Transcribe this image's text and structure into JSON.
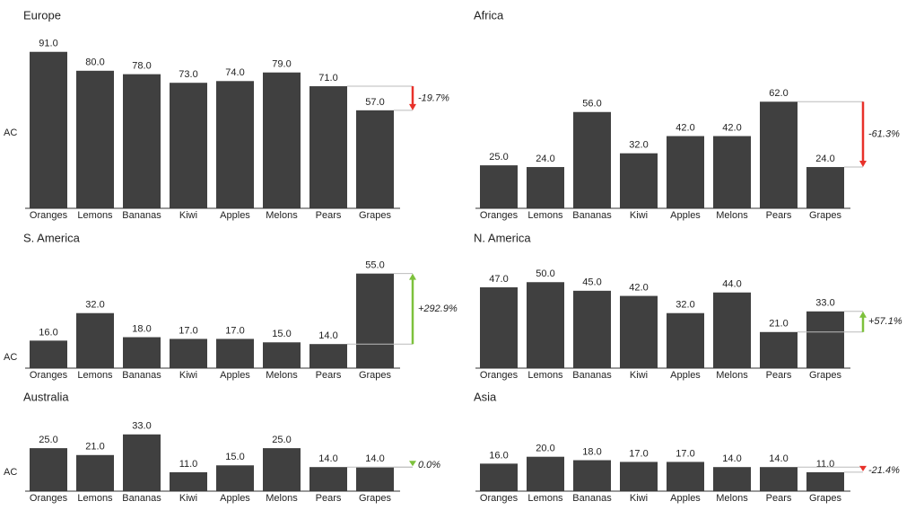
{
  "chart_data": [
    {
      "type": "bar",
      "title": "Europe",
      "axis_label": "AC",
      "categories": [
        "Oranges",
        "Lemons",
        "Bananas",
        "Kiwi",
        "Apples",
        "Melons",
        "Pears",
        "Grapes"
      ],
      "values": [
        91,
        80,
        78,
        73,
        74,
        79,
        71,
        57
      ],
      "value_labels": [
        "91.0",
        "80.0",
        "78.0",
        "73.0",
        "74.0",
        "79.0",
        "71.0",
        "57.0"
      ],
      "color": "#404040",
      "annotation": "-19.7%",
      "annotation_color": "#e8312a"
    },
    {
      "type": "bar",
      "title": "Africa",
      "categories": [
        "Oranges",
        "Lemons",
        "Bananas",
        "Kiwi",
        "Apples",
        "Melons",
        "Pears",
        "Grapes"
      ],
      "values": [
        25,
        24,
        56,
        32,
        42,
        42,
        62,
        24
      ],
      "value_labels": [
        "25.0",
        "24.0",
        "56.0",
        "32.0",
        "42.0",
        "42.0",
        "62.0",
        "24.0"
      ],
      "color": "#404040",
      "annotation": "-61.3%",
      "annotation_color": "#e8312a"
    },
    {
      "type": "bar",
      "title": "S. America",
      "axis_label": "AC",
      "categories": [
        "Oranges",
        "Lemons",
        "Bananas",
        "Kiwi",
        "Apples",
        "Melons",
        "Pears",
        "Grapes"
      ],
      "values": [
        16,
        32,
        18,
        17,
        17,
        15,
        14,
        55
      ],
      "value_labels": [
        "16.0",
        "32.0",
        "18.0",
        "17.0",
        "17.0",
        "15.0",
        "14.0",
        "55.0"
      ],
      "color": "#404040",
      "annotation": "+292.9%",
      "annotation_color": "#7dc13c"
    },
    {
      "type": "bar",
      "title": "N. America",
      "categories": [
        "Oranges",
        "Lemons",
        "Bananas",
        "Kiwi",
        "Apples",
        "Melons",
        "Pears",
        "Grapes"
      ],
      "values": [
        47,
        50,
        45,
        42,
        32,
        44,
        21,
        33
      ],
      "value_labels": [
        "47.0",
        "50.0",
        "45.0",
        "42.0",
        "32.0",
        "44.0",
        "21.0",
        "33.0"
      ],
      "color": "#404040",
      "annotation": "+57.1%",
      "annotation_color": "#7dc13c"
    },
    {
      "type": "bar",
      "title": "Australia",
      "axis_label": "AC",
      "categories": [
        "Oranges",
        "Lemons",
        "Bananas",
        "Kiwi",
        "Apples",
        "Melons",
        "Pears",
        "Grapes"
      ],
      "values": [
        25,
        21,
        33,
        11,
        15,
        25,
        14,
        14
      ],
      "value_labels": [
        "25.0",
        "21.0",
        "33.0",
        "11.0",
        "15.0",
        "25.0",
        "14.0",
        "14.0"
      ],
      "color": "#404040",
      "annotation": "0.0%",
      "annotation_color": "#7dc13c"
    },
    {
      "type": "bar",
      "title": "Asia",
      "categories": [
        "Oranges",
        "Lemons",
        "Bananas",
        "Kiwi",
        "Apples",
        "Melons",
        "Pears",
        "Grapes"
      ],
      "values": [
        16,
        20,
        18,
        17,
        17,
        14,
        14,
        11
      ],
      "value_labels": [
        "16.0",
        "20.0",
        "18.0",
        "17.0",
        "17.0",
        "14.0",
        "14.0",
        "11.0"
      ],
      "color": "#404040",
      "annotation": "-21.4%",
      "annotation_color": "#e8312a"
    }
  ]
}
